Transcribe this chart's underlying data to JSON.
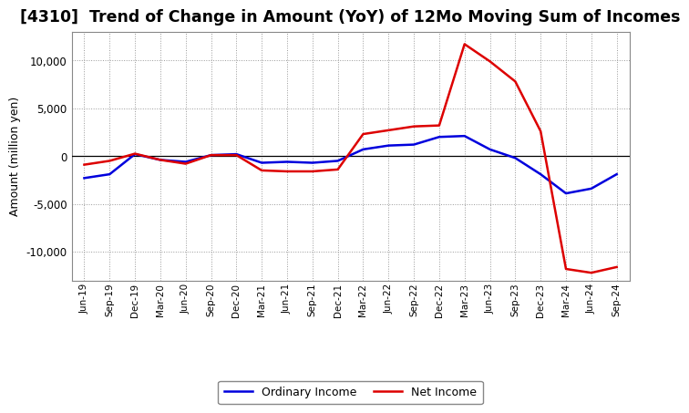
{
  "title": "[4310]  Trend of Change in Amount (YoY) of 12Mo Moving Sum of Incomes",
  "ylabel": "Amount (million yen)",
  "x_labels": [
    "Jun-19",
    "Sep-19",
    "Dec-19",
    "Mar-20",
    "Jun-20",
    "Sep-20",
    "Dec-20",
    "Mar-21",
    "Jun-21",
    "Sep-21",
    "Dec-21",
    "Mar-22",
    "Jun-22",
    "Sep-22",
    "Dec-22",
    "Mar-23",
    "Jun-23",
    "Sep-23",
    "Dec-23",
    "Mar-24",
    "Jun-24",
    "Sep-24"
  ],
  "ordinary_income": [
    -2300,
    -1900,
    200,
    -400,
    -600,
    100,
    200,
    -700,
    -600,
    -700,
    -500,
    700,
    1100,
    1200,
    2000,
    2100,
    700,
    -200,
    -1900,
    -3900,
    -3400,
    -1900
  ],
  "net_income": [
    -900,
    -500,
    250,
    -400,
    -800,
    100,
    100,
    -1500,
    -1600,
    -1600,
    -1400,
    2300,
    2700,
    3100,
    3200,
    11700,
    9900,
    7800,
    2600,
    -11800,
    -12200,
    -11600
  ],
  "ordinary_color": "#0000dd",
  "net_color": "#dd0000",
  "ylim": [
    -13000,
    13000
  ],
  "yticks": [
    -10000,
    -5000,
    0,
    5000,
    10000
  ],
  "background_color": "#ffffff",
  "grid_color": "#999999",
  "line_width": 1.8,
  "title_fontsize": 12.5,
  "legend_entries": [
    "Ordinary Income",
    "Net Income"
  ]
}
